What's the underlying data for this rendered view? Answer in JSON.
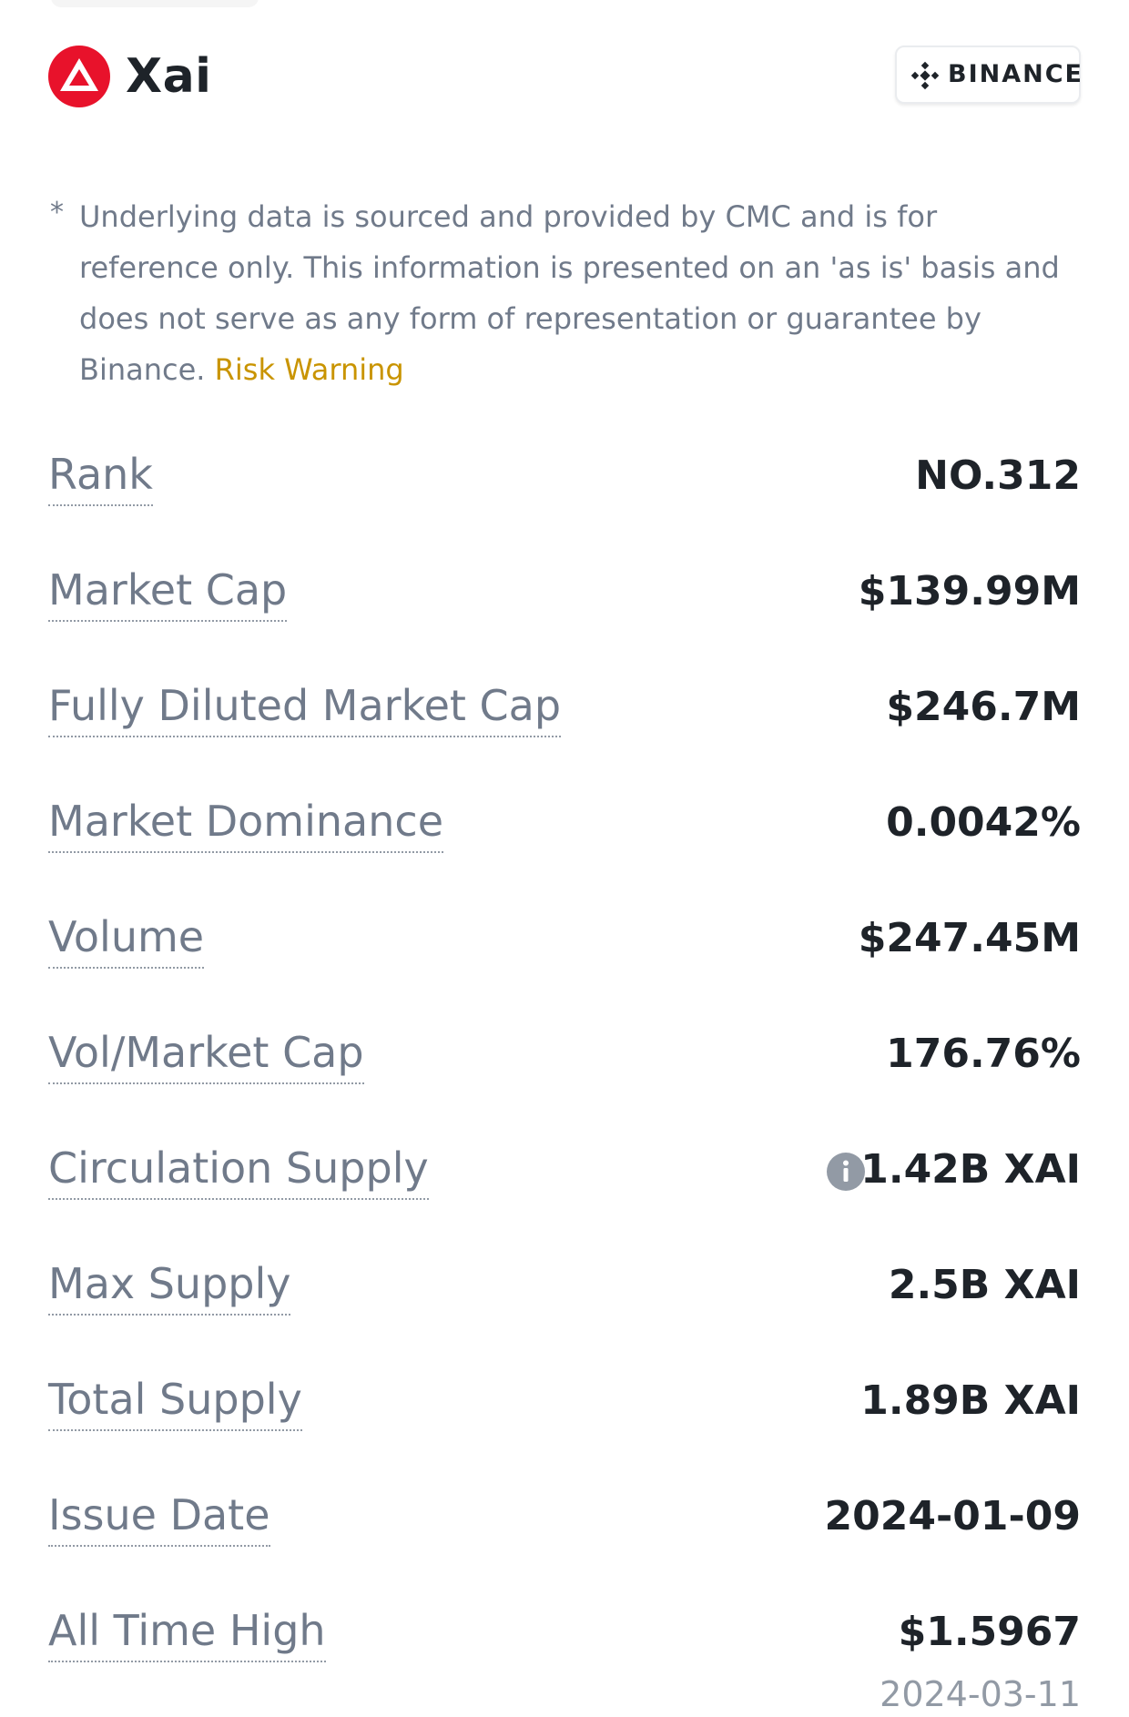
{
  "coin": {
    "name": "Xai",
    "logo_icon": "xai-triangle-logo-icon",
    "logo_color": "#e8122b"
  },
  "source": {
    "label": "BINANCE",
    "icon": "binance-diamond-icon"
  },
  "disclaimer": {
    "asterisk": "*",
    "text": "Underlying data is sourced and provided by CMC and is for reference only. This information is presented on an 'as is' basis and does not serve as any form of representation or guarantee by Binance.",
    "link_label": "Risk Warning",
    "link_color": "#c99400"
  },
  "stats": {
    "rank": {
      "label": "Rank",
      "value": "NO.312"
    },
    "market_cap": {
      "label": "Market Cap",
      "value": "$139.99M"
    },
    "fully_diluted_market_cap": {
      "label": "Fully Diluted Market Cap",
      "value": "$246.7M"
    },
    "market_dominance": {
      "label": "Market Dominance",
      "value": "0.0042%"
    },
    "volume": {
      "label": "Volume",
      "value": "$247.45M"
    },
    "vol_market_cap": {
      "label": "Vol/Market Cap",
      "value": "176.76%"
    },
    "circulation_supply": {
      "label": "Circulation Supply",
      "value": "1.42B XAI",
      "info_icon": "info-circle-icon"
    },
    "max_supply": {
      "label": "Max Supply",
      "value": "2.5B XAI"
    },
    "total_supply": {
      "label": "Total Supply",
      "value": "1.89B XAI"
    },
    "issue_date": {
      "label": "Issue Date",
      "value": "2024-01-09"
    },
    "all_time_high": {
      "label": "All Time High",
      "value": "$1.5967",
      "date": "2024-03-11"
    }
  }
}
